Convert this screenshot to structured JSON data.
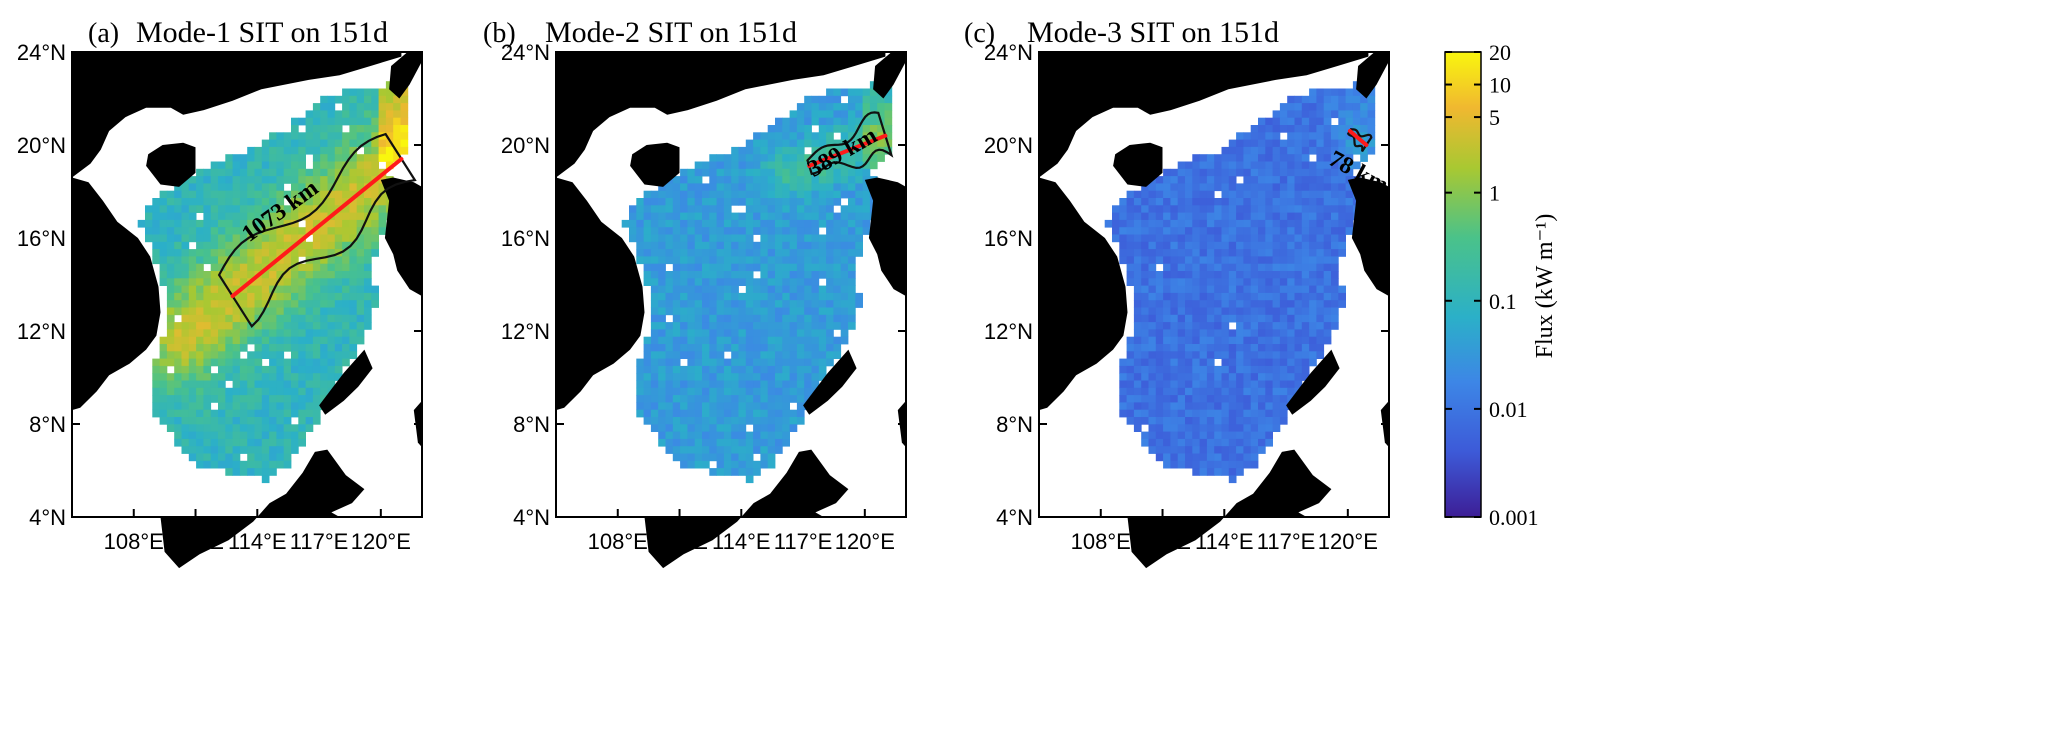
{
  "panels": [
    {
      "label": "(a)",
      "title": "Mode-1 SIT on 151d",
      "distance": "1073 km",
      "level": 0.78
    },
    {
      "label": "(b)",
      "title": "Mode-2 SIT on 151d",
      "distance": "389 km",
      "level": 0.42
    },
    {
      "label": "(c)",
      "title": "Mode-3 SIT on 151d",
      "distance": "78 km",
      "level": 0.18
    }
  ],
  "axes": {
    "lat_ticks": [
      "24°N",
      "20°N",
      "16°N",
      "12°N",
      "8°N",
      "4°N"
    ],
    "lon_ticks": [
      "108°E",
      "111°E",
      "114°E",
      "117°E",
      "120°E"
    ],
    "lat_range": [
      4,
      24
    ],
    "lon_range": [
      105,
      122
    ]
  },
  "colorbar": {
    "label": "Flux (kW m⁻¹)",
    "scale": "log",
    "ticks": [
      "20",
      "10",
      "5",
      "1",
      "0.1",
      "0.01",
      "0.001"
    ],
    "tick_values": [
      20,
      10,
      5,
      1,
      0.1,
      0.01,
      0.001
    ],
    "range": [
      0.001,
      20
    ],
    "colors": [
      "#3d1e96",
      "#3d5ad8",
      "#3d86e6",
      "#2bb0c8",
      "#4ac28a",
      "#a8c832",
      "#f0b830",
      "#f9f60e"
    ]
  },
  "colors": {
    "land": "#000000",
    "no_data": "#ffffff",
    "propagation_line": "#ff1a1a",
    "contour": "#111111"
  }
}
